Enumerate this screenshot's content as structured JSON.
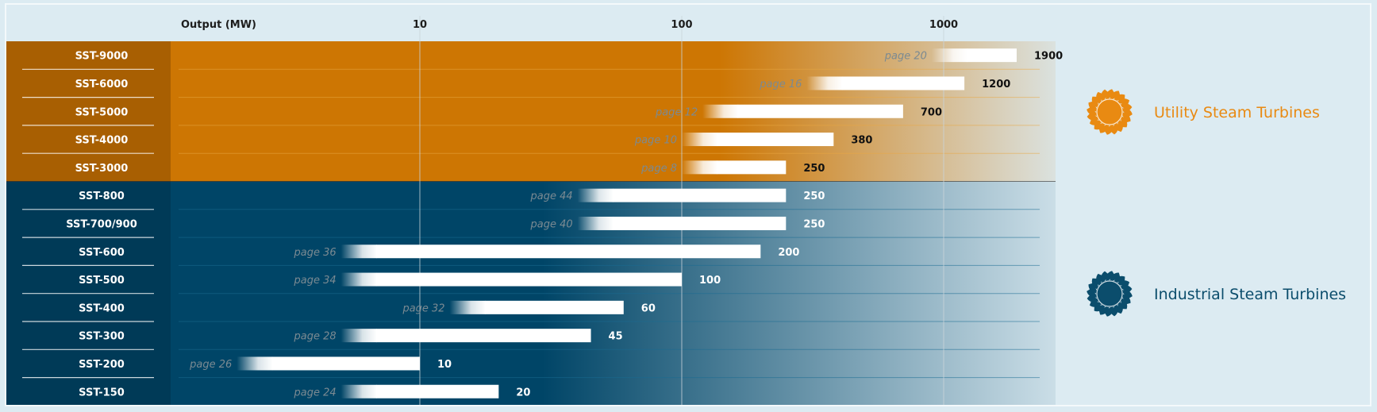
{
  "chart_data": {
    "type": "bar",
    "orientation": "horizontal",
    "x_scale": "log",
    "xlim": [
      1,
      3000
    ],
    "xlabel": "Output (MW)",
    "x_ticks": [
      {
        "value": 10,
        "label": "10"
      },
      {
        "value": 100,
        "label": "100"
      },
      {
        "value": 1000,
        "label": "1000"
      }
    ],
    "grid": true,
    "groups": [
      {
        "name": "Utility Steam Turbines",
        "color": "#cd7603",
        "label_color": "#a85f02",
        "legend_color": "#e98a12",
        "value_color": "#111111",
        "rows": [
          {
            "name": "SST-9000",
            "page": "page 20",
            "start": 900,
            "value": 1900,
            "value_label": "1900"
          },
          {
            "name": "SST-6000",
            "page": "page 16",
            "start": 300,
            "value": 1200,
            "value_label": "1200"
          },
          {
            "name": "SST-5000",
            "page": "page 12",
            "start": 120,
            "value": 700,
            "value_label": "700"
          },
          {
            "name": "SST-4000",
            "page": "page 10",
            "start": 100,
            "value": 380,
            "value_label": "380"
          },
          {
            "name": "SST-3000",
            "page": "page 8",
            "start": 100,
            "value": 250,
            "value_label": "250"
          }
        ]
      },
      {
        "name": "Industrial Steam Turbines",
        "color": "#004567",
        "label_color": "#003a57",
        "legend_color": "#0b4d6c",
        "value_color": "#ffffff",
        "rows": [
          {
            "name": "SST-800",
            "page": "page 44",
            "start": 40,
            "value": 250,
            "value_label": "250"
          },
          {
            "name": "SST-700/900",
            "page": "page 40",
            "start": 40,
            "value": 250,
            "value_label": "250"
          },
          {
            "name": "SST-600",
            "page": "page 36",
            "start": 5,
            "value": 200,
            "value_label": "200"
          },
          {
            "name": "SST-500",
            "page": "page 34",
            "start": 5,
            "value": 100,
            "value_label": "100"
          },
          {
            "name": "SST-400",
            "page": "page 32",
            "start": 13,
            "value": 60,
            "value_label": "60"
          },
          {
            "name": "SST-300",
            "page": "page 28",
            "start": 5,
            "value": 45,
            "value_label": "45"
          },
          {
            "name": "SST-200",
            "page": "page 26",
            "start": 2,
            "value": 10,
            "value_label": "10"
          },
          {
            "name": "SST-150",
            "page": "page 24",
            "start": 5,
            "value": 20,
            "value_label": "20"
          }
        ]
      }
    ]
  }
}
